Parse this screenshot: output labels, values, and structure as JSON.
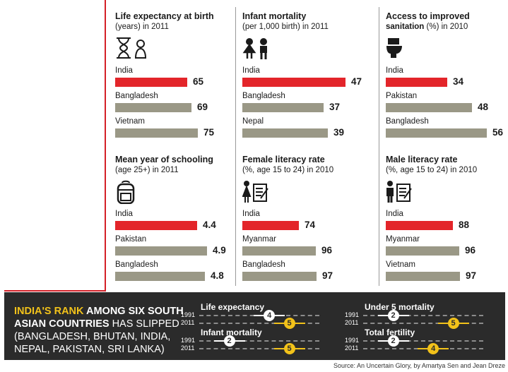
{
  "chart_data": [
    {
      "type": "bar",
      "title": "Life expectancy at birth",
      "subtitle": "(years) in 2011",
      "icon": "hourglass-baby-icon",
      "categories": [
        "India",
        "Bangladesh",
        "Vietnam"
      ],
      "values": [
        65,
        69,
        75
      ]
    },
    {
      "type": "bar",
      "title": "Infant mortality",
      "subtitle": "(per 1,000 birth) in 2011",
      "icon": "children-icon",
      "categories": [
        "India",
        "Bangladesh",
        "Nepal"
      ],
      "values": [
        47,
        37,
        39
      ]
    },
    {
      "type": "bar",
      "title": "Access to improved",
      "title2": "sanitation",
      "subtitle": "(%) in 2010",
      "icon": "toilet-icon",
      "categories": [
        "India",
        "Pakistan",
        "Bangladesh"
      ],
      "values": [
        34,
        48,
        56
      ]
    },
    {
      "type": "bar",
      "title": "Mean year of schooling",
      "subtitle": "(age 25+) in 2011",
      "icon": "backpack-icon",
      "categories": [
        "India",
        "Pakistan",
        "Bangladesh"
      ],
      "values": [
        4.4,
        4.9,
        4.8
      ]
    },
    {
      "type": "bar",
      "title": "Female literacy rate",
      "subtitle": "(%, age 15 to 24) in 2010",
      "icon": "woman-notebook-icon",
      "categories": [
        "India",
        "Myanmar",
        "Bangladesh"
      ],
      "values": [
        74,
        96,
        97
      ]
    },
    {
      "type": "bar",
      "title": "Male literacy rate",
      "subtitle": "(%, age 15 to 24) in 2010",
      "icon": "man-notebook-icon",
      "categories": [
        "India",
        "Myanmar",
        "Vietnam"
      ],
      "values": [
        88,
        96,
        97
      ]
    }
  ],
  "rank": {
    "heading_highlight": "INDIA'S RANK",
    "heading_bold": " AMONG SIX SOUTH ASIAN COUNTRIES",
    "heading_rest": " HAS SLIPPED (BANGLADESH, BHUTAN, INDIA, NEPAL, PAKISTAN, SRI LANKA)",
    "years": [
      "1991",
      "2011"
    ],
    "metrics": [
      {
        "name": "Life expectancy",
        "rank_1991": 4,
        "rank_2011": 5
      },
      {
        "name": "Under 5 mortality",
        "rank_1991": 2,
        "rank_2011": 5
      },
      {
        "name": "Infant mortality",
        "rank_1991": 2,
        "rank_2011": 5
      },
      {
        "name": "Total fertility",
        "rank_1991": 2,
        "rank_2011": 4
      }
    ]
  },
  "source": "Source: An Uncertain Glory, by Amartya Sen and Jean Dreze",
  "colors": {
    "highlight": "#e3252a",
    "bar": "#9a9886",
    "rank_bg": "#2b2b2b",
    "rank_1991": "#ffffff",
    "rank_2011": "#f2c21a",
    "rule": "#d42027"
  }
}
